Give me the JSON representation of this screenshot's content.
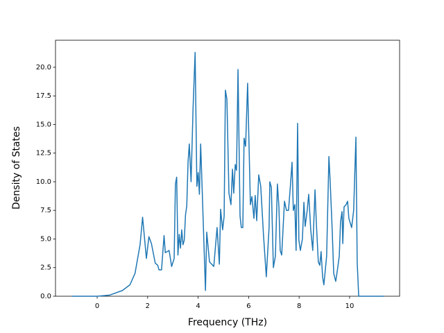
{
  "chart_data": {
    "type": "line",
    "x_label": "Frequency (THz)",
    "y_label": "Density of States",
    "color": "#1f77b4",
    "x": [
      -1.0,
      0,
      0.5,
      1.0,
      1.3,
      1.5,
      1.7,
      1.8,
      1.9,
      1.95,
      2.05,
      2.15,
      2.3,
      2.4,
      2.45,
      2.55,
      2.65,
      2.7,
      2.85,
      2.95,
      3.05,
      3.1,
      3.15,
      3.2,
      3.25,
      3.3,
      3.35,
      3.4,
      3.45,
      3.5,
      3.55,
      3.6,
      3.65,
      3.72,
      3.8,
      3.88,
      3.95,
      4.0,
      4.05,
      4.1,
      4.15,
      4.29,
      4.34,
      4.45,
      4.62,
      4.75,
      4.84,
      4.89,
      4.97,
      5.03,
      5.08,
      5.14,
      5.22,
      5.3,
      5.36,
      5.41,
      5.47,
      5.52,
      5.58,
      5.66,
      5.71,
      5.77,
      5.82,
      5.88,
      5.96,
      6.07,
      6.13,
      6.21,
      6.26,
      6.32,
      6.4,
      6.48,
      6.59,
      6.7,
      6.81,
      6.84,
      6.9,
      6.98,
      7.06,
      7.14,
      7.2,
      7.25,
      7.31,
      7.42,
      7.5,
      7.58,
      7.66,
      7.72,
      7.77,
      7.83,
      7.88,
      7.94,
      7.99,
      8.05,
      8.13,
      8.19,
      8.24,
      8.32,
      8.38,
      8.46,
      8.54,
      8.63,
      8.68,
      8.76,
      8.82,
      8.87,
      8.93,
      8.98,
      9.09,
      9.18,
      9.23,
      9.31,
      9.37,
      9.45,
      9.53,
      9.59,
      9.64,
      9.7,
      9.73,
      9.78,
      9.86,
      9.92,
      9.97,
      10.08,
      10.16,
      10.25,
      10.3,
      10.36,
      11.35
    ],
    "values": [
      0,
      0,
      0.1,
      0.5,
      1.0,
      2.0,
      4.5,
      6.9,
      4.5,
      3.3,
      5.2,
      4.6,
      2.9,
      2.7,
      2.3,
      2.3,
      5.3,
      3.8,
      4.0,
      2.6,
      3.3,
      9.8,
      10.4,
      3.6,
      5.4,
      4.2,
      5.8,
      4.5,
      4.9,
      7.1,
      7.9,
      11.7,
      13.3,
      10.0,
      16.5,
      21.3,
      9.6,
      10.8,
      8.9,
      13.3,
      10.0,
      0.5,
      5.6,
      3.0,
      2.6,
      6.0,
      2.8,
      7.6,
      5.8,
      7.0,
      18.0,
      17.2,
      9.0,
      8.0,
      11.1,
      9.0,
      11.5,
      11.0,
      19.8,
      7.0,
      6.0,
      6.0,
      13.8,
      13.1,
      18.6,
      8.0,
      8.7,
      6.8,
      8.8,
      6.6,
      10.6,
      9.6,
      5.3,
      1.7,
      6.0,
      10.0,
      9.5,
      2.5,
      3.5,
      9.8,
      7.8,
      4.0,
      3.6,
      8.3,
      7.5,
      7.5,
      9.8,
      11.7,
      7.5,
      8.0,
      4.0,
      15.1,
      4.9,
      4.0,
      5.0,
      8.2,
      6.1,
      7.5,
      8.9,
      5.8,
      4.0,
      9.3,
      6.5,
      3.0,
      2.7,
      3.9,
      1.7,
      1.0,
      3.5,
      12.2,
      10.0,
      5.8,
      2.0,
      1.3,
      2.5,
      3.5,
      6.5,
      7.4,
      4.6,
      7.8,
      8.0,
      8.3,
      6.8,
      6.0,
      7.5,
      13.9,
      3.0,
      0,
      0
    ],
    "xlim": [
      -1.65,
      11.98
    ],
    "ylim": [
      0,
      22.36
    ],
    "xticks": [
      0,
      2,
      4,
      6,
      8,
      10
    ],
    "yticks": [
      {
        "value": 0,
        "label": "0.0"
      },
      {
        "value": 2.5,
        "label": "2.5"
      },
      {
        "value": 5,
        "label": "5.0"
      },
      {
        "value": 7.5,
        "label": "7.5"
      },
      {
        "value": 10,
        "label": "10.0"
      },
      {
        "value": 12.5,
        "label": "12.5"
      },
      {
        "value": 15,
        "label": "15.0"
      },
      {
        "value": 17.5,
        "label": "17.5"
      },
      {
        "value": 20,
        "label": "20.0"
      }
    ]
  }
}
